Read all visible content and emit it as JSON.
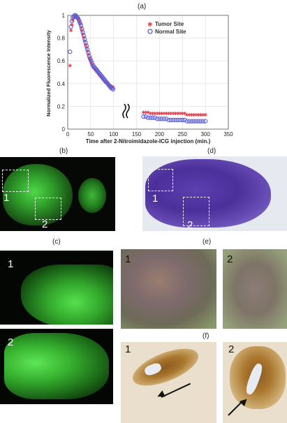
{
  "panels": {
    "a": "(a)",
    "b": "(b)",
    "c": "(c)",
    "d": "(d)",
    "e": "(e)",
    "f": "(f)"
  },
  "chart_data": {
    "type": "scatter",
    "xlabel": "Time after 2-Nitroimidazole-ICG injection (min.)",
    "ylabel": "Normalized Fluorescence Intensity",
    "xlim": [
      0,
      350
    ],
    "ylim": [
      0,
      1
    ],
    "x_ticks": [
      "0",
      "50",
      "100",
      "150",
      "200",
      "250",
      "300",
      "350"
    ],
    "y_ticks": [
      "0",
      "0.2",
      "0.4",
      "0.6",
      "0.8",
      "1"
    ],
    "grid": true,
    "legend_position": "top-right",
    "axis_break": "between 150 and 160",
    "series": [
      {
        "name": "Tumor Site",
        "marker": "star",
        "color": "#e8404f",
        "x": [
          5,
          7,
          9,
          11,
          13,
          15,
          17,
          19,
          21,
          23,
          25,
          27,
          29,
          31,
          33,
          35,
          37,
          39,
          41,
          43,
          45,
          47,
          49,
          51,
          53,
          55,
          57,
          59,
          61,
          63,
          65,
          67,
          69,
          71,
          73,
          75,
          77,
          79,
          81,
          83,
          85,
          87,
          89,
          91,
          93,
          95,
          97,
          99,
          165,
          170,
          175,
          180,
          185,
          190,
          195,
          200,
          205,
          210,
          215,
          220,
          225,
          230,
          235,
          240,
          245,
          250,
          255,
          260,
          265,
          270,
          275,
          280,
          285,
          290,
          295,
          300
        ],
        "y": [
          0.56,
          0.87,
          0.92,
          0.96,
          0.98,
          0.99,
          1.0,
          0.99,
          0.98,
          0.97,
          0.95,
          0.93,
          0.9,
          0.87,
          0.84,
          0.81,
          0.78,
          0.75,
          0.72,
          0.69,
          0.66,
          0.63,
          0.61,
          0.59,
          0.57,
          0.55,
          0.54,
          0.53,
          0.52,
          0.51,
          0.5,
          0.49,
          0.48,
          0.47,
          0.46,
          0.45,
          0.44,
          0.43,
          0.42,
          0.41,
          0.41,
          0.4,
          0.39,
          0.39,
          0.38,
          0.38,
          0.37,
          0.37,
          0.15,
          0.15,
          0.15,
          0.14,
          0.14,
          0.14,
          0.14,
          0.14,
          0.14,
          0.14,
          0.14,
          0.14,
          0.14,
          0.14,
          0.14,
          0.14,
          0.14,
          0.14,
          0.14,
          0.13,
          0.13,
          0.13,
          0.13,
          0.13,
          0.13,
          0.13,
          0.13,
          0.13
        ]
      },
      {
        "name": "Normal Site",
        "marker": "circle",
        "color": "#5a5fd6",
        "x": [
          5,
          7,
          9,
          11,
          13,
          15,
          17,
          19,
          21,
          23,
          25,
          27,
          29,
          31,
          33,
          35,
          37,
          39,
          41,
          43,
          45,
          47,
          49,
          51,
          53,
          55,
          57,
          59,
          61,
          63,
          65,
          67,
          69,
          71,
          73,
          75,
          77,
          79,
          81,
          83,
          85,
          87,
          89,
          91,
          93,
          95,
          97,
          99,
          165,
          170,
          175,
          180,
          185,
          190,
          195,
          200,
          205,
          210,
          215,
          220,
          225,
          230,
          235,
          240,
          245,
          250,
          255,
          260,
          265,
          270,
          275,
          280,
          285,
          290,
          295,
          300
        ],
        "y": [
          0.68,
          0.9,
          0.95,
          0.98,
          0.99,
          1.0,
          1.0,
          0.99,
          0.98,
          0.97,
          0.95,
          0.93,
          0.91,
          0.88,
          0.85,
          0.82,
          0.79,
          0.76,
          0.73,
          0.7,
          0.67,
          0.64,
          0.62,
          0.6,
          0.58,
          0.56,
          0.55,
          0.54,
          0.53,
          0.52,
          0.51,
          0.5,
          0.49,
          0.48,
          0.47,
          0.46,
          0.45,
          0.44,
          0.43,
          0.42,
          0.41,
          0.4,
          0.39,
          0.38,
          0.37,
          0.36,
          0.36,
          0.35,
          0.11,
          0.11,
          0.1,
          0.1,
          0.1,
          0.1,
          0.09,
          0.09,
          0.09,
          0.09,
          0.09,
          0.08,
          0.08,
          0.08,
          0.08,
          0.08,
          0.08,
          0.08,
          0.08,
          0.07,
          0.07,
          0.07,
          0.07,
          0.07,
          0.07,
          0.07,
          0.07,
          0.07
        ]
      }
    ]
  },
  "images": {
    "b_numbers": [
      "1",
      "2"
    ],
    "c_numbers": [
      "1",
      "2"
    ],
    "d_numbers": [
      "1",
      "2"
    ],
    "e_numbers": [
      "1",
      "2"
    ],
    "f_numbers": [
      "1",
      "2"
    ]
  }
}
